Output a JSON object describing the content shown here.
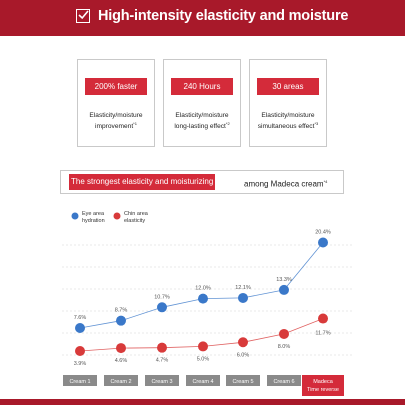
{
  "header": {
    "title_bold": "High-intensity",
    "title_rest": "elasticity and moisture",
    "check_icon": "checkbox-check-icon"
  },
  "cards": [
    {
      "value": "200% faster",
      "desc_line1": "Elasticity/moisture",
      "desc_line2": "improvement",
      "note": "*1"
    },
    {
      "value": "240 Hours",
      "desc_line1": "Elasticity/moisture",
      "desc_line2": "long-lasting effect",
      "note": "*2"
    },
    {
      "value": "30 areas",
      "desc_line1": "Elasticity/moisture",
      "desc_line2": "simultaneous effect",
      "note": "*3"
    }
  ],
  "subheading": {
    "highlight": "The strongest elasticity and moisturizing",
    "rest": "among Madeca cream",
    "note": "*4"
  },
  "colors": {
    "brand_red": "#a8192a",
    "pill_red": "#d42b3a",
    "series_blue": "#3a78c9",
    "series_red": "#d83a3a",
    "label_gray": "#8a8a8a"
  },
  "chart_data": {
    "type": "line",
    "categories": [
      "Cream 1",
      "Cream 2",
      "Cream 3",
      "Cream 4",
      "Cream 5",
      "Cream 6",
      "Madeca Time reverse"
    ],
    "series": [
      {
        "name": "Eye area hydration",
        "values": [
          7.6,
          8.7,
          10.7,
          12.0,
          12.1,
          13.3,
          20.4
        ],
        "labels": [
          "7.6%",
          "8.7%",
          "10.7%",
          "12.0%",
          "12.1%",
          "13.3%",
          "20.4%"
        ],
        "color": "#3a78c9"
      },
      {
        "name": "Chin area elasticity",
        "values": [
          3.9,
          4.6,
          4.7,
          5.0,
          6.0,
          8.0,
          11.7
        ],
        "labels": [
          "3.9%",
          "4.6%",
          "4.7%",
          "5.0%",
          "6.0%",
          "8.0%",
          "11.7%"
        ],
        "color": "#d83a3a"
      }
    ],
    "legend_position": "top-left",
    "grid": true,
    "highlight_category": "Madeca Time reverse"
  }
}
